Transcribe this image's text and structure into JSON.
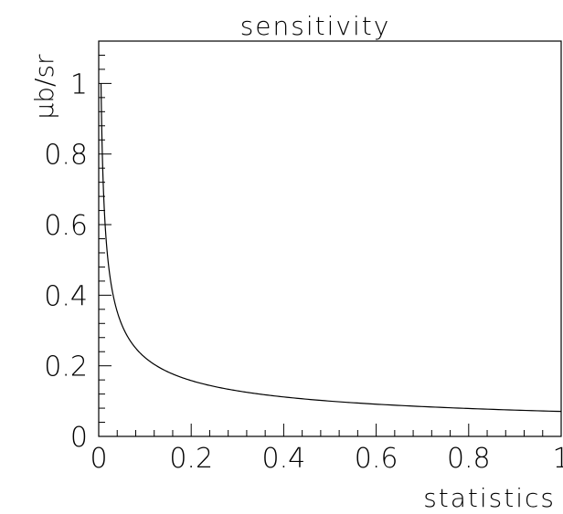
{
  "chart_data": {
    "type": "line",
    "title": "sensitivity",
    "xlabel": "statistics",
    "ylabel": "μb/sr",
    "xlim": [
      0,
      1
    ],
    "ylim": [
      0,
      1.12
    ],
    "x_ticks": [
      0,
      0.2,
      0.4,
      0.6,
      0.8,
      1
    ],
    "x_tick_labels": [
      "0",
      "0.2",
      "0.4",
      "0.6",
      "0.8",
      "1"
    ],
    "y_ticks": [
      0,
      0.2,
      0.4,
      0.6,
      0.8,
      1
    ],
    "y_tick_labels": [
      "0",
      "0.2",
      "0.4",
      "0.6",
      "0.8",
      "1"
    ],
    "grid": false,
    "legend": "none",
    "series": [
      {
        "x": [
          0.005,
          0.01,
          0.02,
          0.03,
          0.05,
          0.07,
          0.1,
          0.15,
          0.2,
          0.3,
          0.4,
          0.5,
          0.6,
          0.7,
          0.8,
          0.9,
          1.0
        ],
        "y": [
          1.0,
          0.707,
          0.5,
          0.408,
          0.316,
          0.267,
          0.224,
          0.183,
          0.158,
          0.129,
          0.112,
          0.1,
          0.091,
          0.085,
          0.079,
          0.075,
          0.071
        ]
      }
    ],
    "colors": {
      "line": "#000000",
      "axis": "#000000"
    }
  }
}
